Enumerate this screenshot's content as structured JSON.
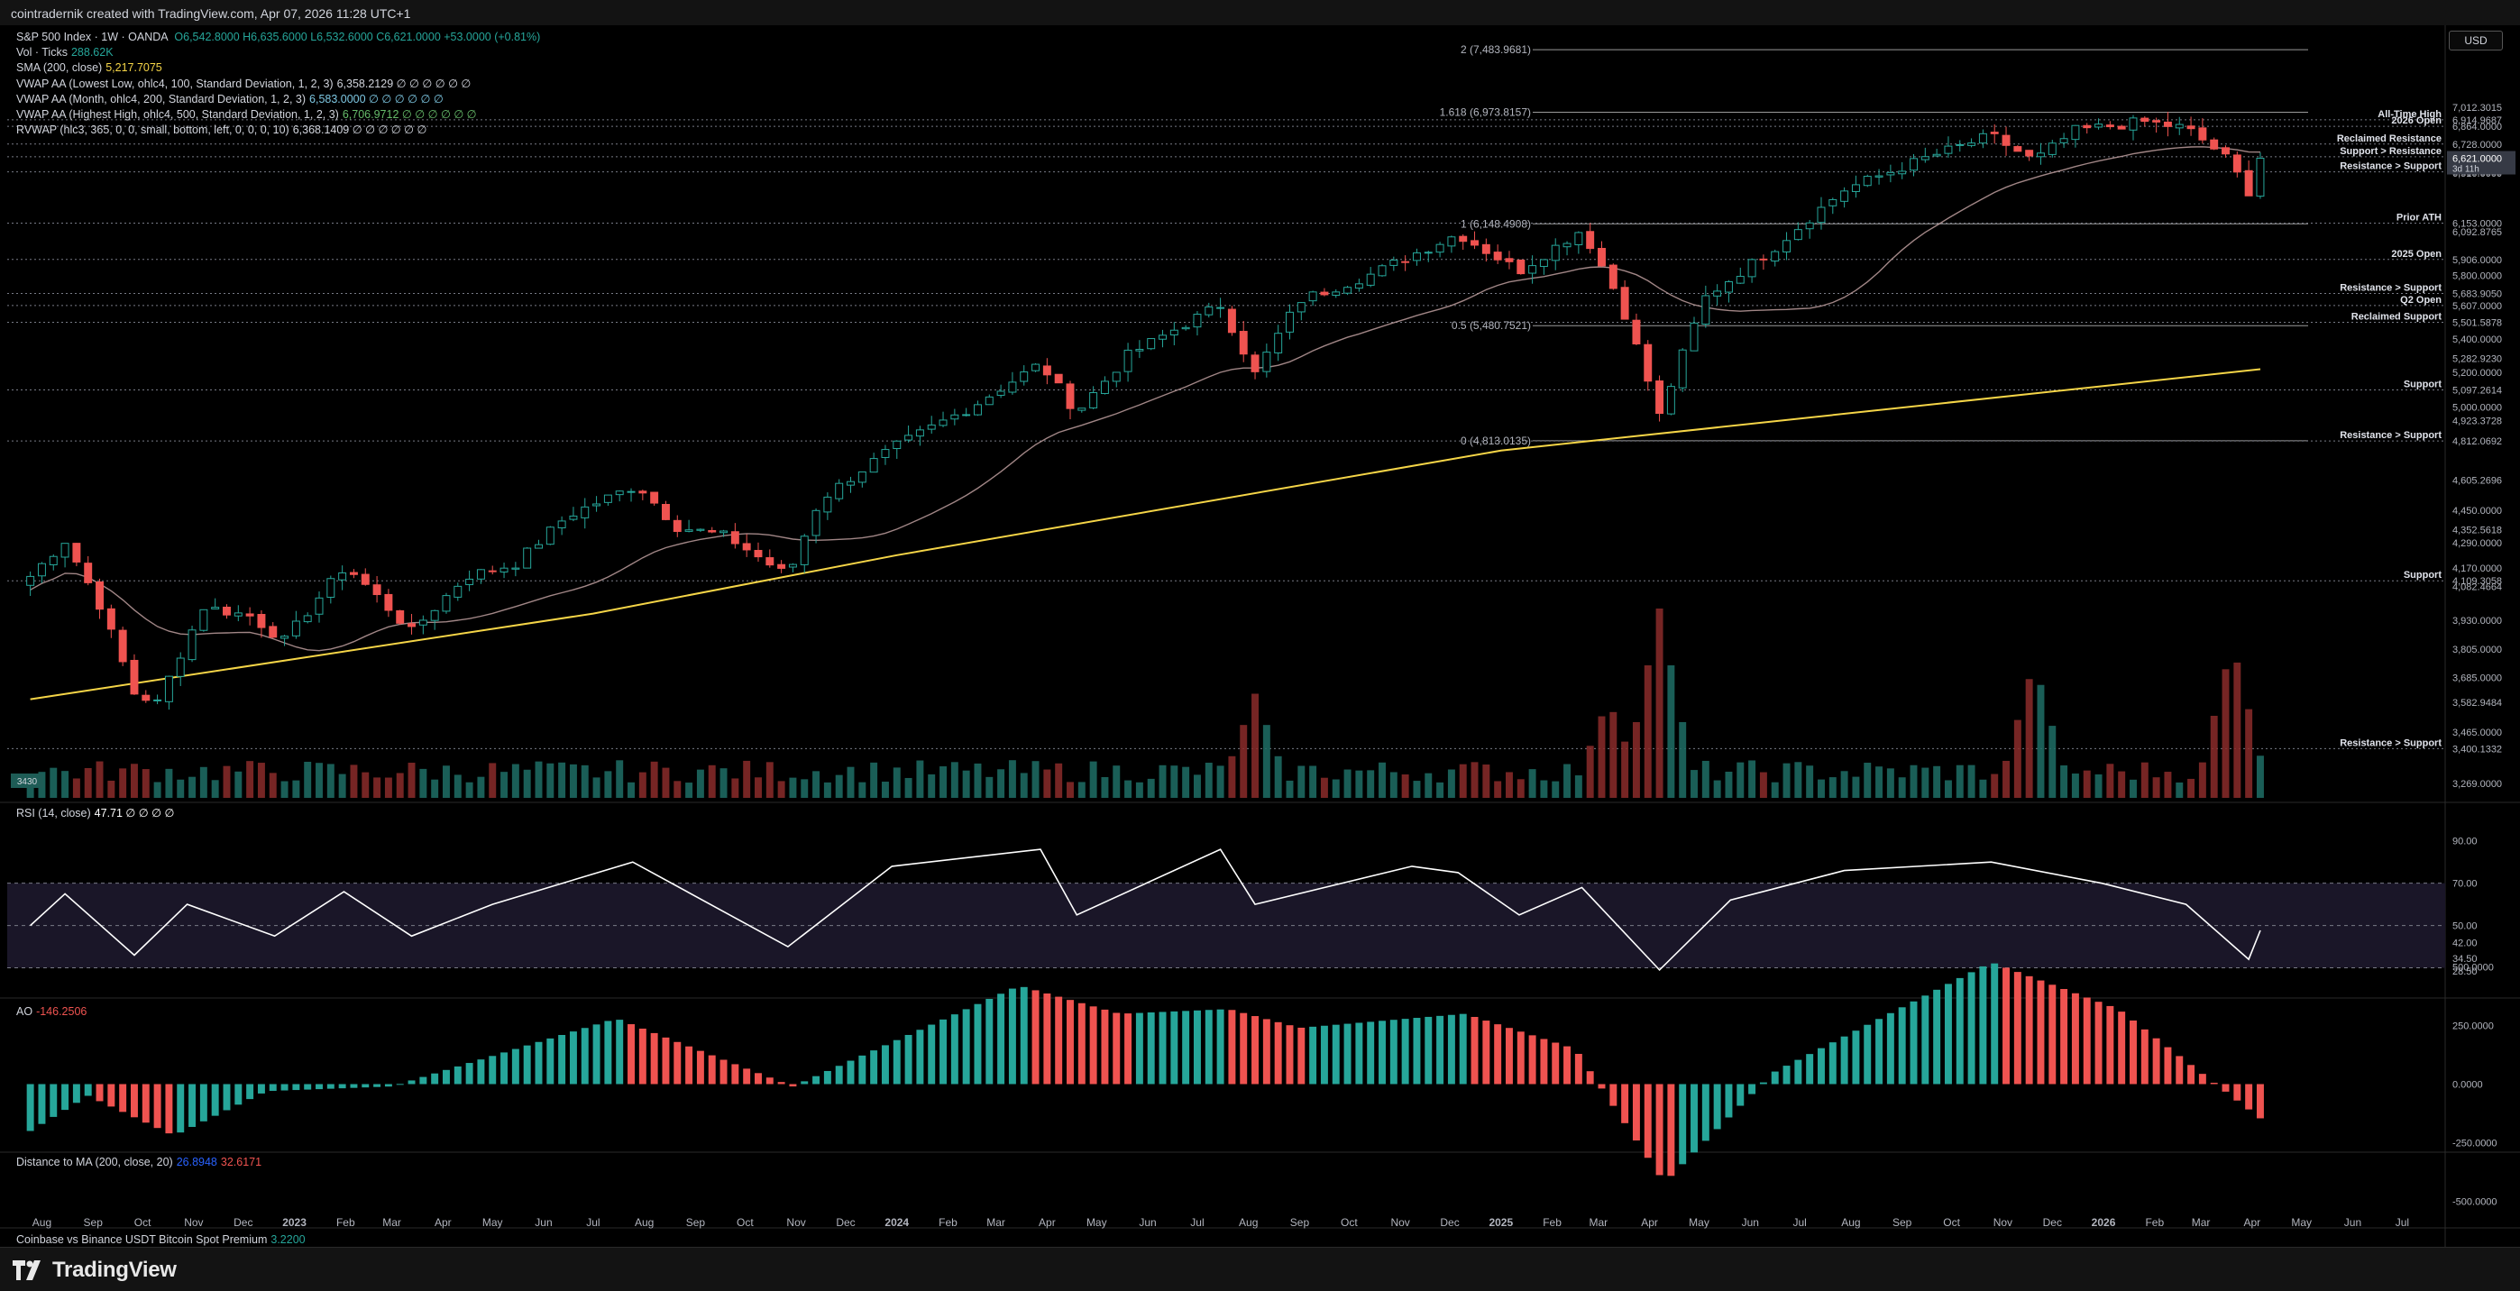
{
  "header": {
    "attribution": "cointradernik created with TradingView.com, Apr 07, 2026 11:28 UTC+1"
  },
  "currency_button": "USD",
  "legend": {
    "symbol": "S&P 500 Index · 1W · OANDA",
    "ohlc": "O6,542.8000 H6,635.6000 L6,532.6000 C6,621.0000 +53.0000 (+0.81%)",
    "vol": {
      "label": "Vol · Ticks",
      "value": "288.62K"
    },
    "sma": {
      "label": "SMA (200, close)",
      "value": "5,217.7075"
    },
    "vwap_low": {
      "label": "VWAP AA (Lowest Low, ohlc4, 100, Standard Deviation, 1, 2, 3)",
      "value": "6,358.2129 ∅ ∅ ∅ ∅ ∅ ∅"
    },
    "vwap_month": {
      "label": "VWAP AA (Month, ohlc4, 200, Standard Deviation, 1, 2, 3)",
      "value": "6,583.0000 ∅ ∅ ∅ ∅ ∅ ∅"
    },
    "vwap_high": {
      "label": "VWAP AA (Highest High, ohlc4, 500, Standard Deviation, 1, 2, 3)",
      "value": "6,706.9712 ∅ ∅ ∅ ∅ ∅ ∅"
    },
    "rvwap": {
      "label": "RVWAP (hlc3, 365, 0, 0, small, bottom, left, 0, 0, 0, 10)",
      "value": "6,368.1409 ∅ ∅ ∅ ∅ ∅ ∅"
    }
  },
  "rsi_legend": {
    "label": "RSI (14, close)",
    "value": "47.71 ∅ ∅ ∅ ∅"
  },
  "ao_legend": {
    "label": "AO",
    "value": "-146.2506"
  },
  "dist_legend": {
    "label": "Distance to MA (200, close, 20)",
    "v1": "26.8948",
    "v2": "32.6171"
  },
  "premium_legend": {
    "label": "Coinbase vs Binance USDT Bitcoin Spot Premium",
    "value": "3.2200"
  },
  "vol_badge": "3430",
  "footer": {
    "brand": "TradingView"
  },
  "colors": {
    "up": "#26a69a",
    "down": "#ef5350",
    "sma": "#f5d547",
    "rsi": "#ffffff",
    "bg": "#000000"
  },
  "chart_data": {
    "type": "candlestick",
    "timeframe": "1W",
    "price_axis": {
      "ylim": [
        3200,
        7600
      ],
      "scale": "log",
      "ticks": [
        "7,012.3015",
        "6,914.9687",
        "6,864.0000",
        "6,728.0000",
        "6,632.0057",
        "6,621.0000",
        "6,579.0000",
        "6,519.8669",
        "6,510.0000",
        "6,153.0000",
        "6,092.8765",
        "5,906.0000",
        "5,800.0000",
        "5,683.9050",
        "5,607.0000",
        "5,501.5878",
        "5,400.0000",
        "5,282.9230",
        "5,200.0000",
        "5,097.2614",
        "5,000.0000",
        "4,923.3728",
        "4,812.0692",
        "4,605.2696",
        "4,450.0000",
        "4,352.5618",
        "4,290.0000",
        "4,170.0000",
        "4,109.3058",
        "4,082.4664",
        "3,930.0000",
        "3,805.0000",
        "3,685.0000",
        "3,582.9484",
        "3,465.0000",
        "3,400.1332",
        "3,269.0000"
      ],
      "current_label": "6,621.0000",
      "countdown": "3d 11h"
    },
    "time_axis": [
      "Aug",
      "Sep",
      "Oct",
      "Nov",
      "Dec",
      "2023",
      "Feb",
      "Mar",
      "Apr",
      "May",
      "Jun",
      "Jul",
      "Aug",
      "Sep",
      "Oct",
      "Nov",
      "Dec",
      "2024",
      "Feb",
      "Mar",
      "Apr",
      "May",
      "Jun",
      "Jul",
      "Aug",
      "Sep",
      "Oct",
      "Nov",
      "Dec",
      "2025",
      "Feb",
      "Mar",
      "Apr",
      "May",
      "Jun",
      "Jul",
      "Aug",
      "Sep",
      "Oct",
      "Nov",
      "Dec",
      "2026",
      "Feb",
      "Mar",
      "Apr",
      "May",
      "Jun",
      "Jul"
    ],
    "levels": [
      {
        "label": "All-Time High",
        "price": 6914.97
      },
      {
        "label": "2026 Open",
        "price": 6864
      },
      {
        "label": "Reclaimed Resistance",
        "price": 6728
      },
      {
        "label": "Support > Resistance",
        "price": 6632
      },
      {
        "label": "Resistance > Support",
        "price": 6519.87
      },
      {
        "label": "Prior ATH",
        "price": 6153
      },
      {
        "label": "2025 Open",
        "price": 5906
      },
      {
        "label": "Resistance > Support",
        "price": 5683.9
      },
      {
        "label": "Q2 Open",
        "price": 5607
      },
      {
        "label": "Reclaimed Support",
        "price": 5501.59
      },
      {
        "label": "Support",
        "price": 5097.26
      },
      {
        "label": "Resistance > Support",
        "price": 4812.07
      },
      {
        "label": "Support",
        "price": 4109.31
      },
      {
        "label": "Resistance > Support",
        "price": 3400.13
      }
    ],
    "fib": [
      {
        "label": "2 (7,483.9681)",
        "price": 7483.97
      },
      {
        "label": "1.618 (6,973.8157)",
        "price": 6973.82
      },
      {
        "label": "1 (6,148.4908)",
        "price": 6148.49
      },
      {
        "label": "0.5 (5,480.7521)",
        "price": 5480.75
      },
      {
        "label": "0 (4,813.0135)",
        "price": 4813.01
      }
    ],
    "anchors": [
      {
        "t": "2022-07-25",
        "p": 4130
      },
      {
        "t": "2022-08-15",
        "p": 4300
      },
      {
        "t": "2022-09-05",
        "p": 4000
      },
      {
        "t": "2022-09-26",
        "p": 3620
      },
      {
        "t": "2022-10-10",
        "p": 3580
      },
      {
        "t": "2022-11-07",
        "p": 3990
      },
      {
        "t": "2022-12-05",
        "p": 3950
      },
      {
        "t": "2022-12-26",
        "p": 3840
      },
      {
        "t": "2023-02-01",
        "p": 4180
      },
      {
        "t": "2023-03-13",
        "p": 3880
      },
      {
        "t": "2023-04-15",
        "p": 4130
      },
      {
        "t": "2023-05-15",
        "p": 4190
      },
      {
        "t": "2023-06-15",
        "p": 4420
      },
      {
        "t": "2023-07-28",
        "p": 4580
      },
      {
        "t": "2023-08-20",
        "p": 4370
      },
      {
        "t": "2023-09-20",
        "p": 4320
      },
      {
        "t": "2023-10-27",
        "p": 4130
      },
      {
        "t": "2023-11-15",
        "p": 4500
      },
      {
        "t": "2023-12-29",
        "p": 4770
      },
      {
        "t": "2024-02-15",
        "p": 5000
      },
      {
        "t": "2024-03-28",
        "p": 5250
      },
      {
        "t": "2024-04-19",
        "p": 4970
      },
      {
        "t": "2024-05-20",
        "p": 5300
      },
      {
        "t": "2024-07-15",
        "p": 5610
      },
      {
        "t": "2024-08-05",
        "p": 5190
      },
      {
        "t": "2024-09-01",
        "p": 5640
      },
      {
        "t": "2024-10-15",
        "p": 5810
      },
      {
        "t": "2024-12-06",
        "p": 6080
      },
      {
        "t": "2025-01-12",
        "p": 5830
      },
      {
        "t": "2025-02-19",
        "p": 6110
      },
      {
        "t": "2025-03-14",
        "p": 5640
      },
      {
        "t": "2025-04-07",
        "p": 4950
      },
      {
        "t": "2025-05-05",
        "p": 5660
      },
      {
        "t": "2025-06-15",
        "p": 5980
      },
      {
        "t": "2025-07-28",
        "p": 6390
      },
      {
        "t": "2025-09-15",
        "p": 6620
      },
      {
        "t": "2025-10-25",
        "p": 6790
      },
      {
        "t": "2025-11-20",
        "p": 6600
      },
      {
        "t": "2025-12-15",
        "p": 6830
      },
      {
        "t": "2026-01-25",
        "p": 6900
      },
      {
        "t": "2026-02-20",
        "p": 6850
      },
      {
        "t": "2026-03-15",
        "p": 6640
      },
      {
        "t": "2026-03-30",
        "p": 6380
      },
      {
        "t": "2026-04-06",
        "p": 6621
      }
    ],
    "sma200": [
      {
        "t": "2022-07-25",
        "p": 3595
      },
      {
        "t": "2023-07-01",
        "p": 3960
      },
      {
        "t": "2024-01-01",
        "p": 4230
      },
      {
        "t": "2025-01-01",
        "p": 4760
      },
      {
        "t": "2026-04-06",
        "p": 5218
      }
    ],
    "rsi": {
      "ticks": [
        "90.00",
        "70.00",
        "50.00",
        "42.00",
        "34.50",
        "28.50"
      ],
      "last": 47.71,
      "points": [
        {
          "t": "2022-07-25",
          "v": 50
        },
        {
          "t": "2022-08-15",
          "v": 65
        },
        {
          "t": "2022-09-26",
          "v": 36
        },
        {
          "t": "2022-10-28",
          "v": 60
        },
        {
          "t": "2022-12-20",
          "v": 45
        },
        {
          "t": "2023-01-31",
          "v": 66
        },
        {
          "t": "2023-03-13",
          "v": 45
        },
        {
          "t": "2023-05-01",
          "v": 60
        },
        {
          "t": "2023-07-25",
          "v": 80
        },
        {
          "t": "2023-10-27",
          "v": 40
        },
        {
          "t": "2023-12-29",
          "v": 78
        },
        {
          "t": "2024-03-28",
          "v": 86
        },
        {
          "t": "2024-04-19",
          "v": 55
        },
        {
          "t": "2024-07-15",
          "v": 86
        },
        {
          "t": "2024-08-05",
          "v": 60
        },
        {
          "t": "2024-11-08",
          "v": 78
        },
        {
          "t": "2024-12-06",
          "v": 75
        },
        {
          "t": "2025-01-12",
          "v": 55
        },
        {
          "t": "2025-02-19",
          "v": 68
        },
        {
          "t": "2025-04-07",
          "v": 29
        },
        {
          "t": "2025-05-20",
          "v": 62
        },
        {
          "t": "2025-07-28",
          "v": 76
        },
        {
          "t": "2025-10-25",
          "v": 80
        },
        {
          "t": "2025-12-31",
          "v": 70
        },
        {
          "t": "2026-02-20",
          "v": 60
        },
        {
          "t": "2026-03-30",
          "v": 34
        },
        {
          "t": "2026-04-06",
          "v": 47.71
        }
      ]
    },
    "ao": {
      "ticks": [
        "500.0000",
        "250.0000",
        "0.0000",
        "-250.0000",
        "-500.0000"
      ],
      "last": -146.25,
      "points": [
        {
          "t": "2022-07-25",
          "v": -200
        },
        {
          "t": "2022-08-29",
          "v": -50
        },
        {
          "t": "2022-10-20",
          "v": -220
        },
        {
          "t": "2022-12-15",
          "v": -30
        },
        {
          "t": "2023-03-01",
          "v": -10
        },
        {
          "t": "2023-07-15",
          "v": 280
        },
        {
          "t": "2023-10-30",
          "v": -10
        },
        {
          "t": "2024-03-15",
          "v": 420
        },
        {
          "t": "2024-05-15",
          "v": 300
        },
        {
          "t": "2024-07-20",
          "v": 320
        },
        {
          "t": "2024-09-01",
          "v": 240
        },
        {
          "t": "2024-12-10",
          "v": 300
        },
        {
          "t": "2025-02-15",
          "v": 150
        },
        {
          "t": "2025-04-10",
          "v": -420
        },
        {
          "t": "2025-06-15",
          "v": 50
        },
        {
          "t": "2025-10-25",
          "v": 520
        },
        {
          "t": "2026-01-10",
          "v": 320
        },
        {
          "t": "2026-04-06",
          "v": -146
        }
      ]
    },
    "volume_peaks": [
      {
        "t": "2024-08-05",
        "v": 0.55
      },
      {
        "t": "2025-03-07",
        "v": 0.52
      },
      {
        "t": "2025-04-07",
        "v": 1.0
      },
      {
        "t": "2025-11-20",
        "v": 0.72
      },
      {
        "t": "2026-03-20",
        "v": 0.82
      }
    ]
  }
}
